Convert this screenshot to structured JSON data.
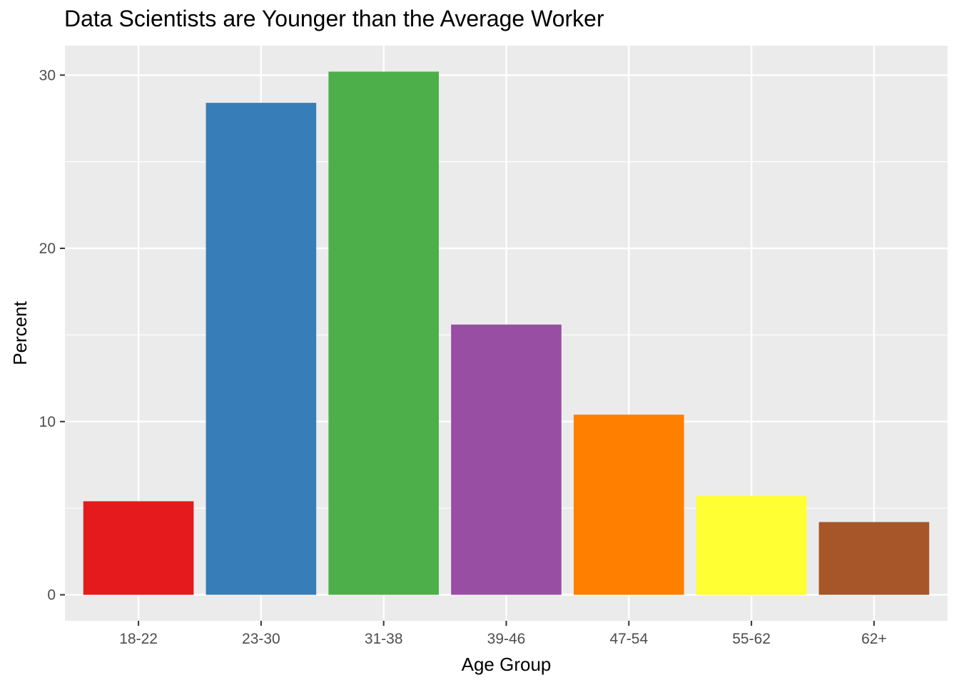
{
  "chart_data": {
    "type": "bar",
    "title": "Data Scientists are Younger than the Average Worker",
    "xlabel": "Age Group",
    "ylabel": "Percent",
    "categories": [
      "18-22",
      "23-30",
      "31-38",
      "39-46",
      "47-54",
      "55-62",
      "62+"
    ],
    "values": [
      5.4,
      28.4,
      30.2,
      15.6,
      10.4,
      5.7,
      4.2
    ],
    "colors": [
      "#e41a1c",
      "#377eb8",
      "#4daf4a",
      "#984ea3",
      "#ff7f00",
      "#ffff33",
      "#a65628"
    ],
    "yticks": [
      0,
      10,
      20,
      30
    ],
    "ylim": [
      -1.5,
      31.7
    ],
    "grid": true,
    "legend": "none",
    "panel_background": "#ebebeb",
    "gridline_color": "#ffffff"
  }
}
